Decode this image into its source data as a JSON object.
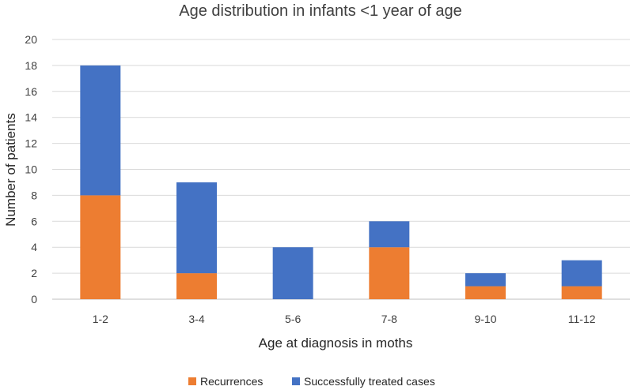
{
  "chart_data": {
    "type": "bar",
    "stacked": true,
    "title": "Age distribution in infants <1 year of age",
    "xlabel": "Age at diagnosis in moths",
    "ylabel": "Number of patients",
    "ylim": [
      0,
      20
    ],
    "yticks": [
      0,
      2,
      4,
      6,
      8,
      10,
      12,
      14,
      16,
      18,
      20
    ],
    "categories": [
      "1-2",
      "3-4",
      "5-6",
      "7-8",
      "9-10",
      "11-12"
    ],
    "series": [
      {
        "name": "Recurrences",
        "color": "#ed7d31",
        "values": [
          8,
          2,
          0,
          4,
          1,
          1
        ]
      },
      {
        "name": "Successfully treated cases",
        "color": "#4472c4",
        "values": [
          10,
          7,
          4,
          2,
          1,
          2
        ]
      }
    ],
    "grid": true,
    "legend_position": "bottom"
  }
}
